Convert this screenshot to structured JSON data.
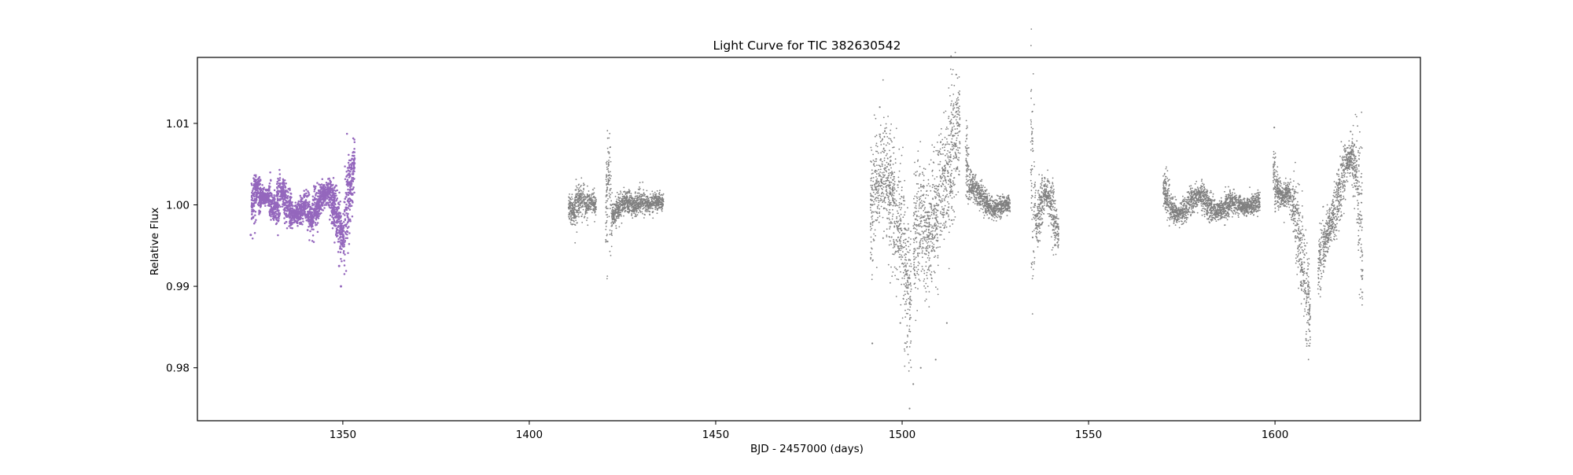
{
  "chart_data": {
    "type": "scatter",
    "title": "Light Curve for TIC 382630542",
    "xlabel": "BJD - 2457000 (days)",
    "ylabel": "Relative Flux",
    "xlim": [
      1311,
      1639
    ],
    "ylim": [
      0.9735,
      1.0181
    ],
    "xticks": [
      1350,
      1400,
      1450,
      1500,
      1550,
      1600
    ],
    "xtick_labels": [
      "1350",
      "1400",
      "1450",
      "1500",
      "1550",
      "1600"
    ],
    "yticks": [
      0.98,
      0.99,
      1.0,
      1.01
    ],
    "ytick_labels": [
      "0.98",
      "0.99",
      "1.00",
      "1.01"
    ],
    "grid": false,
    "legend": "none",
    "series": [
      {
        "color": "#9467bd",
        "segments": [
          {
            "x0": 1325.5,
            "x1": 1353.2,
            "points": [
              [
                1325.5,
                1.0
              ],
              [
                1327.0,
                1.002
              ],
              [
                1328.0,
                1.0008
              ],
              [
                1330.0,
                1.001
              ],
              [
                1332.0,
                0.9992
              ],
              [
                1333.5,
                1.0015
              ],
              [
                1335.0,
                1.0
              ],
              [
                1336.5,
                0.9985
              ],
              [
                1338.0,
                0.999
              ],
              [
                1340.0,
                1.0
              ],
              [
                1341.5,
                0.9982
              ],
              [
                1343.0,
                0.9998
              ],
              [
                1344.5,
                1.0012
              ],
              [
                1346.0,
                1.0015
              ],
              [
                1347.5,
                1.0
              ],
              [
                1349.0,
                0.9975
              ],
              [
                1350.2,
                0.996
              ],
              [
                1351.5,
                1.001
              ],
              [
                1353.2,
                1.005
              ]
            ],
            "extra": [
              [
                1325.3,
                0.9963
              ],
              [
                1349.5,
                0.99
              ],
              [
                1349.0,
                0.9925
              ],
              [
                1353.0,
                1.006
              ]
            ]
          }
        ]
      },
      {
        "color": "#808080",
        "segments": [
          {
            "x0": 1410.5,
            "x1": 1418.0,
            "points": [
              [
                1410.5,
                1.0
              ],
              [
                1412.0,
                0.999
              ],
              [
                1413.5,
                1.001
              ],
              [
                1415.0,
                0.9998
              ],
              [
                1416.5,
                1.0005
              ],
              [
                1418.0,
                0.9998
              ]
            ],
            "extra": []
          },
          {
            "x0": 1420.5,
            "x1": 1436.0,
            "points": [
              [
                1420.5,
                0.999
              ],
              [
                1421.3,
                1.004
              ],
              [
                1422.0,
                0.9985
              ],
              [
                1424.0,
                0.9995
              ],
              [
                1426.0,
                1.0005
              ],
              [
                1428.0,
                0.9998
              ],
              [
                1430.0,
                1.0005
              ],
              [
                1432.0,
                1.0
              ],
              [
                1434.0,
                1.0005
              ],
              [
                1436.0,
                1.0003
              ]
            ],
            "extra": [
              [
                1421.2,
                1.0065
              ],
              [
                1421.0,
                0.9955
              ]
            ]
          },
          {
            "x0": 1491.5,
            "x1": 1502.5,
            "points": [
              [
                1491.5,
                0.999
              ],
              [
                1493.0,
                1.003
              ],
              [
                1494.5,
                1.004
              ],
              [
                1496.0,
                1.002
              ],
              [
                1498.0,
                0.999
              ],
              [
                1500.0,
                0.996
              ],
              [
                1501.5,
                0.99
              ],
              [
                1502.5,
                0.988
              ]
            ],
            "extra": [
              [
                1492.0,
                0.983
              ],
              [
                1494.0,
                1.012
              ],
              [
                1503.0,
                0.978
              ],
              [
                1502.0,
                0.975
              ],
              [
                1499.5,
                0.9855
              ]
            ]
          },
          {
            "x0": 1503.0,
            "x1": 1515.5,
            "points": [
              [
                1503.0,
                0.995
              ],
              [
                1505.0,
                0.999
              ],
              [
                1507.0,
                0.996
              ],
              [
                1509.0,
                0.999
              ],
              [
                1510.5,
                1.002
              ],
              [
                1512.5,
                1.004
              ],
              [
                1514.0,
                1.008
              ],
              [
                1515.5,
                1.01
              ]
            ],
            "extra": [
              [
                1505.0,
                0.98
              ],
              [
                1509.0,
                0.981
              ],
              [
                1514.5,
                1.016
              ],
              [
                1512.0,
                0.9855
              ]
            ]
          },
          {
            "x0": 1517.0,
            "x1": 1529.0,
            "points": [
              [
                1517.0,
                1.006
              ],
              [
                1518.0,
                1.003
              ],
              [
                1519.5,
                1.002
              ],
              [
                1521.0,
                1.001
              ],
              [
                1523.0,
                1.0
              ],
              [
                1525.0,
                0.9995
              ],
              [
                1527.0,
                1.0
              ],
              [
                1529.0,
                1.0
              ]
            ],
            "extra": []
          },
          {
            "x0": 1534.5,
            "x1": 1542.0,
            "points": [
              [
                1534.5,
                1.009
              ],
              [
                1535.2,
                0.9995
              ],
              [
                1536.0,
                0.9975
              ],
              [
                1537.5,
                1.0005
              ],
              [
                1538.5,
                1.0015
              ],
              [
                1540.0,
                1.0
              ],
              [
                1541.0,
                0.9975
              ],
              [
                1542.0,
                0.9962
              ]
            ],
            "extra": [
              [
                1535.0,
                0.996
              ]
            ]
          },
          {
            "x0": 1570.0,
            "x1": 1596.0,
            "points": [
              [
                1570.0,
                1.002
              ],
              [
                1572.0,
                0.9995
              ],
              [
                1574.0,
                0.9988
              ],
              [
                1576.0,
                0.9995
              ],
              [
                1578.0,
                1.0008
              ],
              [
                1580.0,
                1.0012
              ],
              [
                1582.0,
                1.0
              ],
              [
                1584.0,
                0.999
              ],
              [
                1586.0,
                0.9995
              ],
              [
                1588.0,
                1.0005
              ],
              [
                1590.0,
                1.0
              ],
              [
                1592.0,
                0.9998
              ],
              [
                1594.0,
                1.0
              ],
              [
                1596.0,
                1.0005
              ]
            ],
            "extra": []
          },
          {
            "x0": 1599.5,
            "x1": 1609.5,
            "points": [
              [
                1599.5,
                1.004
              ],
              [
                1600.5,
                1.002
              ],
              [
                1602.0,
                1.001
              ],
              [
                1603.5,
                1.0015
              ],
              [
                1605.0,
                1.0
              ],
              [
                1606.5,
                0.996
              ],
              [
                1608.0,
                0.991
              ],
              [
                1609.5,
                0.986
              ]
            ],
            "extra": [
              [
                1599.8,
                1.0095
              ],
              [
                1609.3,
                0.9845
              ]
            ]
          },
          {
            "x0": 1611.5,
            "x1": 1623.5,
            "points": [
              [
                1611.5,
                0.992
              ],
              [
                1613.0,
                0.995
              ],
              [
                1614.5,
                0.997
              ],
              [
                1616.0,
                0.999
              ],
              [
                1617.5,
                1.002
              ],
              [
                1619.0,
                1.005
              ],
              [
                1620.5,
                1.006
              ],
              [
                1622.0,
                1.003
              ],
              [
                1623.0,
                0.998
              ],
              [
                1623.5,
                0.993
              ]
            ],
            "extra": [
              [
                1620.3,
                1.009
              ],
              [
                1623.5,
                0.992
              ]
            ]
          }
        ]
      }
    ]
  }
}
